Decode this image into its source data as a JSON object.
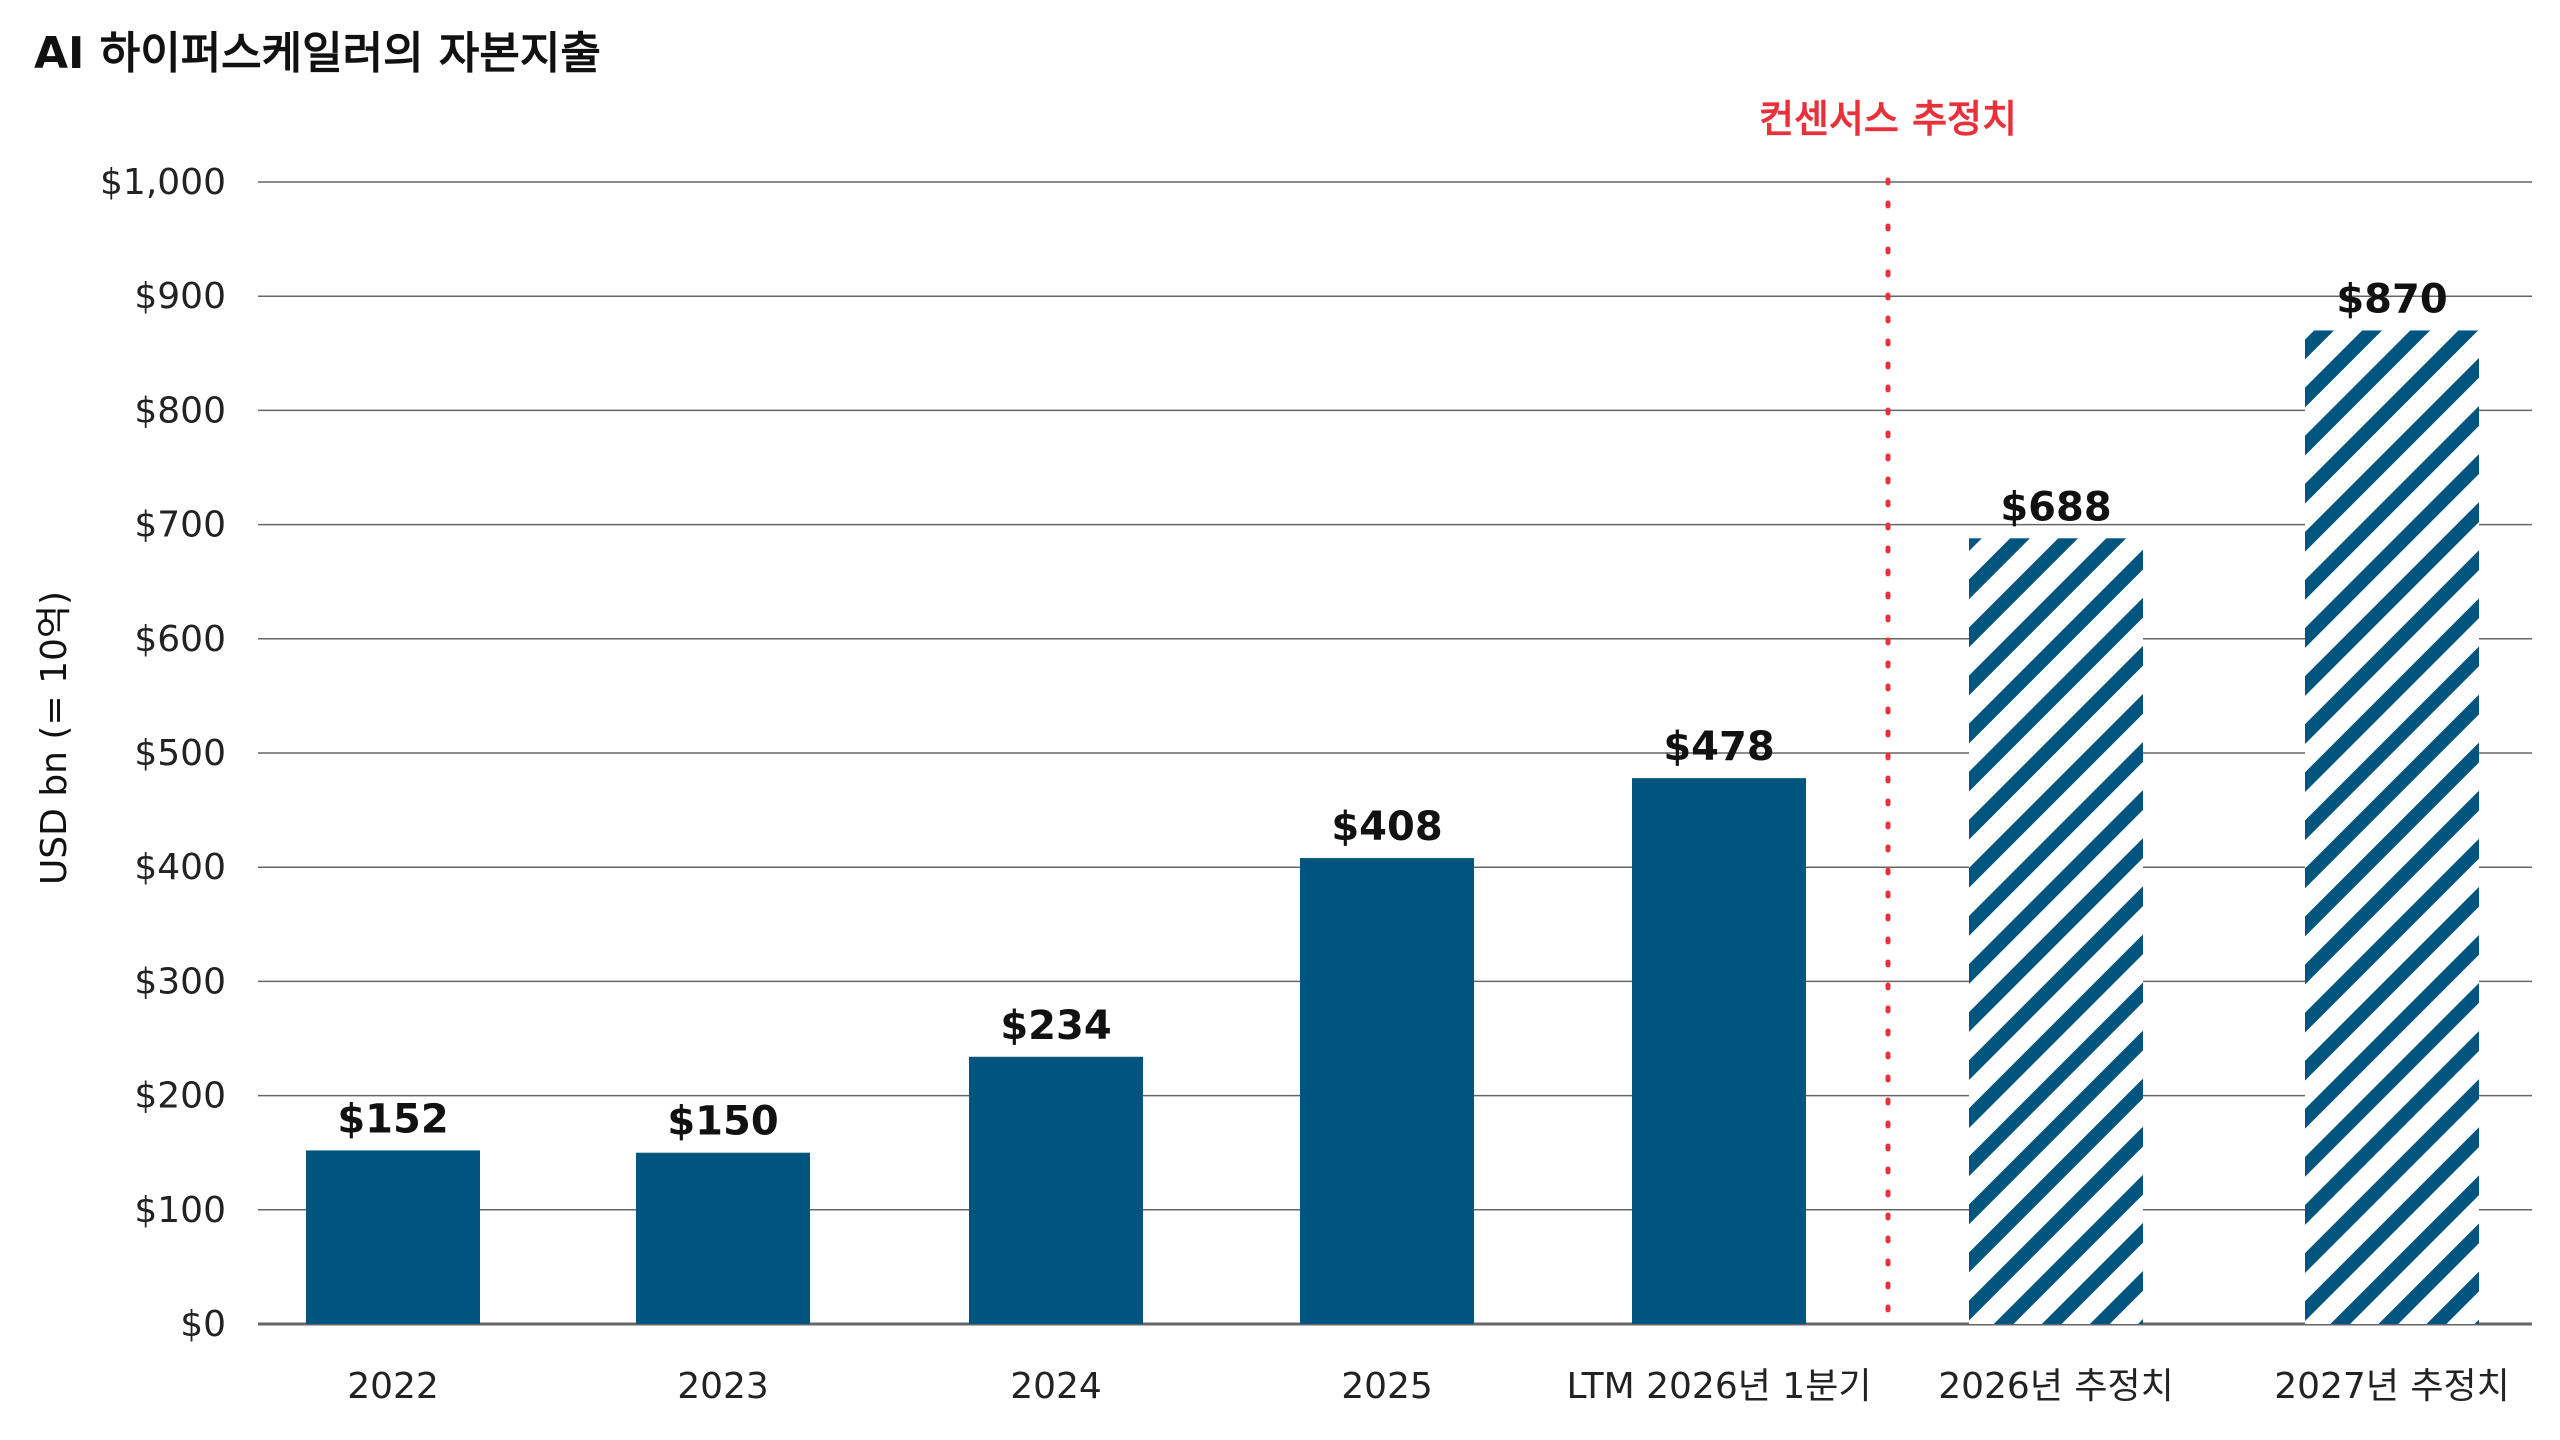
{
  "chart_data": {
    "type": "bar",
    "title": "AI 하이퍼스케일러의 자본지출",
    "ylabel": "USD bn (= 10억)",
    "ylim": [
      0,
      1000
    ],
    "yticks": [
      0,
      100,
      200,
      300,
      400,
      500,
      600,
      700,
      800,
      900,
      1000
    ],
    "ytick_labels": [
      "$0",
      "$100",
      "$200",
      "$300",
      "$400",
      "$500",
      "$600",
      "$700",
      "$800",
      "$900",
      "$1,000"
    ],
    "grid": true,
    "categories": [
      "2022",
      "2023",
      "2024",
      "2025",
      "LTM 2026년 1분기",
      "2026년 추정치",
      "2027년 추정치"
    ],
    "values": [
      152,
      150,
      234,
      408,
      478,
      688,
      870
    ],
    "value_labels": [
      "$152",
      "$150",
      "$234",
      "$408",
      "$478",
      "$688",
      "$870"
    ],
    "estimated": [
      false,
      false,
      false,
      false,
      false,
      true,
      true
    ],
    "annotation": {
      "text": "컨센서스 추정치",
      "color": "#e8313a"
    },
    "colors": {
      "bar": "#00557f",
      "grid": "#666666",
      "divider": "#e8313a"
    }
  }
}
